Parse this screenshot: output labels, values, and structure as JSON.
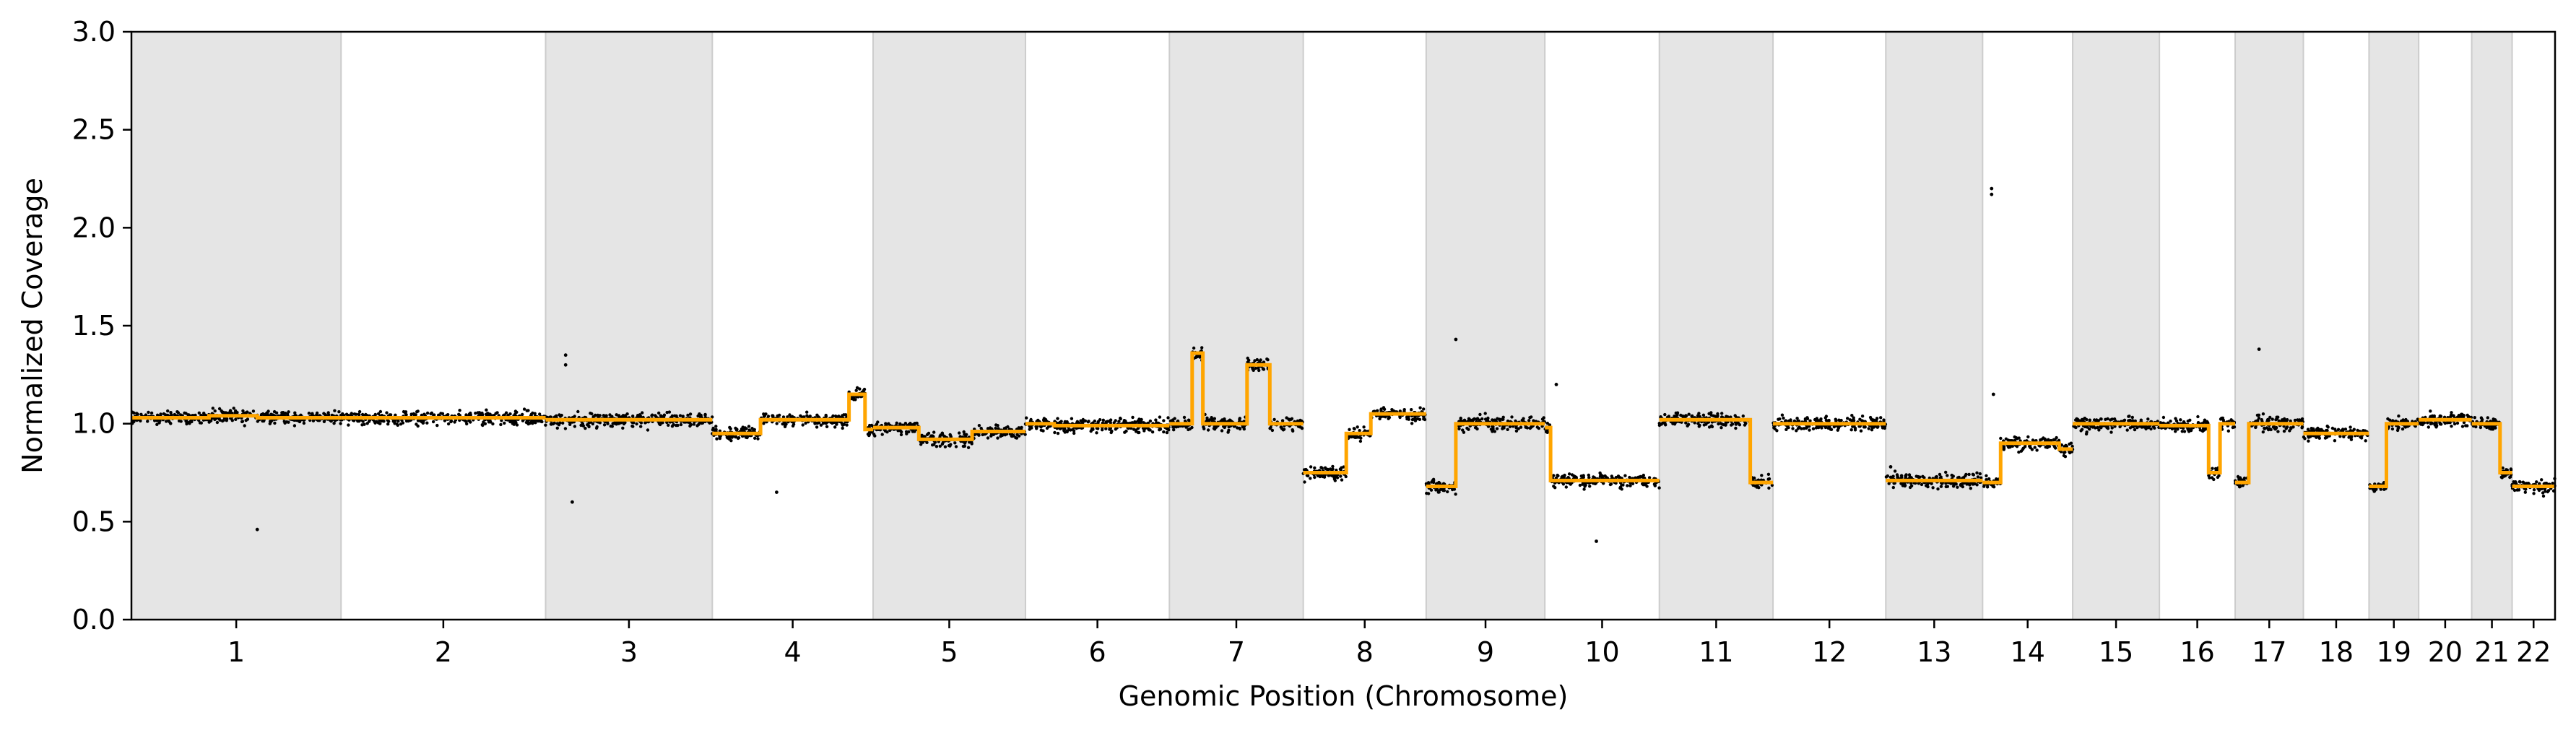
{
  "chart_data": {
    "type": "scatter",
    "title": "",
    "xlabel": "Genomic Position (Chromosome)",
    "ylabel": "Normalized Coverage",
    "ylim": [
      0,
      3.0
    ],
    "yticks": [
      0.0,
      0.5,
      1.0,
      1.5,
      2.0,
      2.5,
      3.0
    ],
    "ytick_labels": [
      "0.0",
      "0.5",
      "1.0",
      "1.5",
      "2.0",
      "2.5",
      "3.0"
    ],
    "grid": false,
    "legend": "none",
    "alternating_chromosome_shading": true,
    "chromosomes": [
      {
        "name": "1",
        "shaded": true,
        "segments": [
          {
            "from": 0.0,
            "to": 0.37,
            "value": 1.03
          },
          {
            "from": 0.37,
            "to": 0.6,
            "value": 1.04
          },
          {
            "from": 0.6,
            "to": 1.0,
            "value": 1.03
          }
        ]
      },
      {
        "name": "2",
        "shaded": false,
        "segments": [
          {
            "from": 0.0,
            "to": 1.0,
            "value": 1.03
          }
        ]
      },
      {
        "name": "3",
        "shaded": true,
        "segments": [
          {
            "from": 0.0,
            "to": 1.0,
            "value": 1.02
          }
        ]
      },
      {
        "name": "4",
        "shaded": false,
        "segments": [
          {
            "from": 0.0,
            "to": 0.3,
            "value": 0.95
          },
          {
            "from": 0.3,
            "to": 0.85,
            "value": 1.02
          },
          {
            "from": 0.85,
            "to": 0.95,
            "value": 1.15
          },
          {
            "from": 0.95,
            "to": 1.0,
            "value": 0.97
          }
        ]
      },
      {
        "name": "5",
        "shaded": true,
        "segments": [
          {
            "from": 0.0,
            "to": 0.3,
            "value": 0.98
          },
          {
            "from": 0.3,
            "to": 0.65,
            "value": 0.92
          },
          {
            "from": 0.65,
            "to": 1.0,
            "value": 0.96
          }
        ]
      },
      {
        "name": "6",
        "shaded": false,
        "segments": [
          {
            "from": 0.0,
            "to": 0.2,
            "value": 1.0
          },
          {
            "from": 0.2,
            "to": 0.7,
            "value": 0.99
          },
          {
            "from": 0.7,
            "to": 1.0,
            "value": 0.99
          }
        ]
      },
      {
        "name": "7",
        "shaded": true,
        "segments": [
          {
            "from": 0.0,
            "to": 0.17,
            "value": 1.0
          },
          {
            "from": 0.17,
            "to": 0.25,
            "value": 1.36
          },
          {
            "from": 0.25,
            "to": 0.58,
            "value": 1.0
          },
          {
            "from": 0.58,
            "to": 0.75,
            "value": 1.3
          },
          {
            "from": 0.75,
            "to": 1.0,
            "value": 1.0
          }
        ]
      },
      {
        "name": "8",
        "shaded": false,
        "segments": [
          {
            "from": 0.0,
            "to": 0.35,
            "value": 0.75
          },
          {
            "from": 0.35,
            "to": 0.55,
            "value": 0.95
          },
          {
            "from": 0.55,
            "to": 1.0,
            "value": 1.05
          }
        ]
      },
      {
        "name": "9",
        "shaded": true,
        "segments": [
          {
            "from": 0.0,
            "to": 0.25,
            "value": 0.68
          },
          {
            "from": 0.25,
            "to": 1.0,
            "value": 1.0
          }
        ]
      },
      {
        "name": "10",
        "shaded": false,
        "segments": [
          {
            "from": 0.0,
            "to": 0.05,
            "value": 0.98
          },
          {
            "from": 0.05,
            "to": 1.0,
            "value": 0.71
          }
        ]
      },
      {
        "name": "11",
        "shaded": true,
        "segments": [
          {
            "from": 0.0,
            "to": 0.8,
            "value": 1.02
          },
          {
            "from": 0.8,
            "to": 1.0,
            "value": 0.7
          }
        ]
      },
      {
        "name": "12",
        "shaded": false,
        "segments": [
          {
            "from": 0.0,
            "to": 1.0,
            "value": 1.0
          }
        ]
      },
      {
        "name": "13",
        "shaded": true,
        "segments": [
          {
            "from": 0.0,
            "to": 1.0,
            "value": 0.71
          }
        ]
      },
      {
        "name": "14",
        "shaded": false,
        "segments": [
          {
            "from": 0.0,
            "to": 0.2,
            "value": 0.7
          },
          {
            "from": 0.2,
            "to": 0.85,
            "value": 0.9
          },
          {
            "from": 0.85,
            "to": 1.0,
            "value": 0.87
          }
        ]
      },
      {
        "name": "15",
        "shaded": true,
        "segments": [
          {
            "from": 0.0,
            "to": 1.0,
            "value": 1.0
          }
        ]
      },
      {
        "name": "16",
        "shaded": false,
        "segments": [
          {
            "from": 0.0,
            "to": 0.65,
            "value": 0.99
          },
          {
            "from": 0.65,
            "to": 0.8,
            "value": 0.75
          },
          {
            "from": 0.8,
            "to": 1.0,
            "value": 1.0
          }
        ]
      },
      {
        "name": "17",
        "shaded": true,
        "segments": [
          {
            "from": 0.0,
            "to": 0.2,
            "value": 0.7
          },
          {
            "from": 0.2,
            "to": 1.0,
            "value": 1.0
          }
        ]
      },
      {
        "name": "18",
        "shaded": false,
        "segments": [
          {
            "from": 0.0,
            "to": 1.0,
            "value": 0.95
          }
        ]
      },
      {
        "name": "19",
        "shaded": true,
        "segments": [
          {
            "from": 0.0,
            "to": 0.35,
            "value": 0.68
          },
          {
            "from": 0.35,
            "to": 1.0,
            "value": 1.0
          }
        ]
      },
      {
        "name": "20",
        "shaded": false,
        "segments": [
          {
            "from": 0.0,
            "to": 1.0,
            "value": 1.02
          }
        ]
      },
      {
        "name": "21",
        "shaded": true,
        "segments": [
          {
            "from": 0.0,
            "to": 0.7,
            "value": 1.0
          },
          {
            "from": 0.7,
            "to": 1.0,
            "value": 0.75
          }
        ]
      },
      {
        "name": "22",
        "shaded": false,
        "segments": [
          {
            "from": 0.0,
            "to": 1.0,
            "value": 0.68
          }
        ]
      }
    ],
    "outliers": [
      {
        "chrom": "1",
        "pos": 0.6,
        "value": 0.46
      },
      {
        "chrom": "3",
        "pos": 0.12,
        "value": 1.35
      },
      {
        "chrom": "3",
        "pos": 0.12,
        "value": 1.3
      },
      {
        "chrom": "3",
        "pos": 0.16,
        "value": 0.6
      },
      {
        "chrom": "4",
        "pos": 0.4,
        "value": 0.65
      },
      {
        "chrom": "9",
        "pos": 0.25,
        "value": 1.43
      },
      {
        "chrom": "10",
        "pos": 0.1,
        "value": 1.2
      },
      {
        "chrom": "10",
        "pos": 0.45,
        "value": 0.4
      },
      {
        "chrom": "13",
        "pos": 0.05,
        "value": 0.78
      },
      {
        "chrom": "14",
        "pos": 0.1,
        "value": 2.2
      },
      {
        "chrom": "14",
        "pos": 0.1,
        "value": 2.17
      },
      {
        "chrom": "14",
        "pos": 0.12,
        "value": 1.15
      },
      {
        "chrom": "17",
        "pos": 0.35,
        "value": 1.38
      }
    ],
    "colors": {
      "points": "#000000",
      "segment_line": "#FFA500",
      "shading": "#e5e5e5",
      "shading_edge": "#cccccc",
      "axis": "#000000"
    }
  }
}
